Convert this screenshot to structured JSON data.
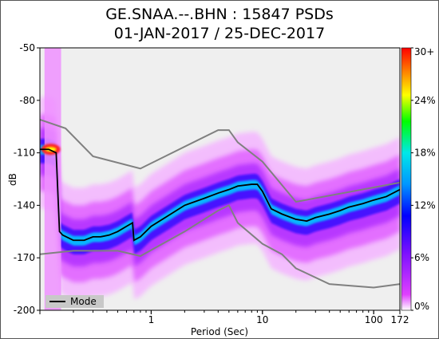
{
  "header": {
    "title_line1": "GE.SNAA.--.BHN : 15847 PSDs",
    "title_line2": "01-JAN-2017 / 25-DEC-2017"
  },
  "chart_data": {
    "type": "heatmap",
    "title": "GE.SNAA.--.BHN : 15847 PSDs",
    "subtitle": "01-JAN-2017 / 25-DEC-2017",
    "xlabel": "Period (Sec)",
    "ylabel": "dB",
    "x_scale": "log",
    "xlim": [
      0.1,
      172
    ],
    "ylim": [
      -200,
      -50
    ],
    "x_ticks": [
      1,
      10,
      100,
      172
    ],
    "x_tick_labels": [
      "1",
      "10",
      "100",
      "172"
    ],
    "y_ticks": [
      -50,
      -80,
      -110,
      -140,
      -170,
      -200
    ],
    "y_tick_labels": [
      "-50",
      "-80",
      "-110",
      "-140",
      "-170",
      "-200"
    ],
    "colorbar": {
      "ticks": [
        0,
        6,
        12,
        18,
        24,
        30
      ],
      "tick_labels": [
        "0%",
        "6%",
        "12%",
        "18%",
        "24%",
        "30+"
      ],
      "colors": [
        "#ffffff",
        "#e040ff",
        "#0000ff",
        "#00c8ff",
        "#00ff00",
        "#ffff00",
        "#ff8000",
        "#ff0000"
      ]
    },
    "legend": {
      "position": "bottom-left",
      "entries": [
        "Mode"
      ]
    },
    "mode_curve": {
      "name": "Mode",
      "x": [
        0.1,
        0.12,
        0.14,
        0.15,
        0.16,
        0.2,
        0.25,
        0.3,
        0.35,
        0.42,
        0.5,
        0.6,
        0.68,
        0.7,
        0.8,
        1,
        1.5,
        2,
        3,
        4,
        5,
        6,
        8,
        9,
        10,
        12,
        15,
        20,
        25,
        30,
        40,
        50,
        60,
        80,
        100,
        130,
        172
      ],
      "y": [
        -108,
        -108,
        -110,
        -155,
        -157,
        -160,
        -160,
        -158,
        -158,
        -157,
        -155,
        -152,
        -150,
        -160,
        -158,
        -152,
        -145,
        -140,
        -136,
        -133,
        -131,
        -129,
        -128,
        -128,
        -132,
        -142,
        -145,
        -148,
        -149,
        -147,
        -145,
        -143,
        -141,
        -139,
        -137,
        -135,
        -131
      ]
    },
    "noise_models": [
      {
        "x": [
          0.1,
          0.17,
          0.3,
          0.8,
          4.0,
          5.0,
          6.0,
          10,
          20,
          172
        ],
        "y": [
          -91,
          -96,
          -112,
          -119,
          -97,
          -97,
          -104,
          -115,
          -138,
          -127
        ]
      },
      {
        "x": [
          0.1,
          0.2,
          0.5,
          0.8,
          2.0,
          4.0,
          5.0,
          6.0,
          10,
          15,
          20,
          40,
          100,
          172
        ],
        "y": [
          -168,
          -166,
          -166,
          -169,
          -155,
          -143,
          -140,
          -150,
          -162,
          -168,
          -176,
          -185,
          -187,
          -185
        ]
      }
    ]
  }
}
